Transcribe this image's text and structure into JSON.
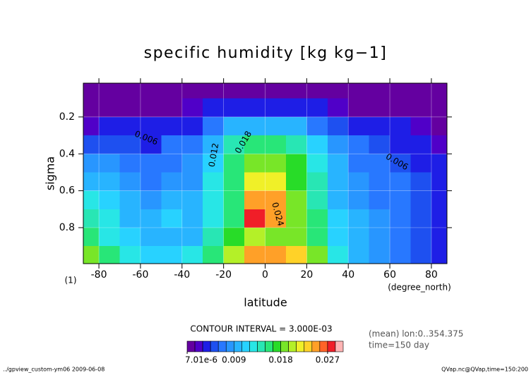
{
  "chart_data": {
    "type": "contour",
    "title": "specific humidity [kg kg−1]",
    "xlabel": "latitude",
    "ylabel": "sigma",
    "x_unit": "(degree_north)",
    "y_unit": "(1)",
    "x": [
      -85,
      -75,
      -65,
      -55,
      -45,
      -35,
      -25,
      -15,
      -5,
      5,
      15,
      25,
      35,
      45,
      55,
      65,
      75,
      85
    ],
    "y": [
      0.05,
      0.15,
      0.25,
      0.35,
      0.45,
      0.55,
      0.65,
      0.75,
      0.85,
      0.95
    ],
    "z": [
      [
        0.001,
        0.001,
        0.001,
        0.001,
        0.001,
        0.001,
        0.001,
        0.001,
        0.001,
        0.001,
        0.001,
        0.001,
        0.001,
        0.001,
        0.001,
        0.001,
        0.001,
        0.001
      ],
      [
        0.001,
        0.001,
        0.001,
        0.001,
        0.001,
        0.002,
        0.003,
        0.003,
        0.003,
        0.003,
        0.003,
        0.003,
        0.002,
        0.001,
        0.001,
        0.001,
        0.001,
        0.001
      ],
      [
        0.002,
        0.003,
        0.003,
        0.003,
        0.003,
        0.004,
        0.007,
        0.009,
        0.01,
        0.01,
        0.009,
        0.007,
        0.005,
        0.004,
        0.003,
        0.003,
        0.002,
        0.001
      ],
      [
        0.005,
        0.005,
        0.005,
        0.004,
        0.006,
        0.007,
        0.01,
        0.014,
        0.016,
        0.016,
        0.014,
        0.011,
        0.008,
        0.006,
        0.005,
        0.004,
        0.003,
        0.002
      ],
      [
        0.008,
        0.008,
        0.007,
        0.006,
        0.007,
        0.008,
        0.011,
        0.016,
        0.019,
        0.019,
        0.017,
        0.013,
        0.009,
        0.007,
        0.006,
        0.005,
        0.004,
        0.003
      ],
      [
        0.01,
        0.01,
        0.008,
        0.007,
        0.008,
        0.008,
        0.012,
        0.016,
        0.022,
        0.022,
        0.017,
        0.014,
        0.01,
        0.008,
        0.007,
        0.006,
        0.005,
        0.003
      ],
      [
        0.012,
        0.011,
        0.009,
        0.008,
        0.01,
        0.009,
        0.013,
        0.016,
        0.025,
        0.024,
        0.018,
        0.014,
        0.01,
        0.008,
        0.007,
        0.006,
        0.005,
        0.004
      ],
      [
        0.014,
        0.012,
        0.01,
        0.009,
        0.011,
        0.01,
        0.013,
        0.016,
        0.027,
        0.024,
        0.018,
        0.015,
        0.011,
        0.009,
        0.008,
        0.006,
        0.005,
        0.004
      ],
      [
        0.016,
        0.013,
        0.011,
        0.01,
        0.01,
        0.01,
        0.014,
        0.017,
        0.02,
        0.019,
        0.019,
        0.015,
        0.011,
        0.009,
        0.008,
        0.007,
        0.005,
        0.004
      ],
      [
        0.019,
        0.015,
        0.012,
        0.011,
        0.011,
        0.012,
        0.016,
        0.02,
        0.024,
        0.025,
        0.023,
        0.018,
        0.012,
        0.01,
        0.008,
        0.007,
        0.005,
        0.004
      ]
    ],
    "xlim": [
      -87.5,
      87.5
    ],
    "ylim": [
      0.995,
      0.017
    ],
    "xticks": [
      -80,
      -60,
      -40,
      -20,
      0,
      20,
      40,
      60,
      80
    ],
    "yticks": [
      0.2,
      0.4,
      0.6,
      0.8
    ],
    "grid": true,
    "contour_labels": [
      "0.006",
      "0.012",
      "0.018",
      "0.024",
      "0.006"
    ],
    "colorbar": {
      "title": "CONTOUR INTERVAL = 3.000E-03",
      "levels": [
        0,
        0.0015,
        0.003,
        0.0045,
        0.006,
        0.0075,
        0.009,
        0.0105,
        0.012,
        0.0135,
        0.015,
        0.0165,
        0.018,
        0.0195,
        0.021,
        0.0225,
        0.024,
        0.0255,
        0.027,
        0.0285,
        0.03
      ],
      "colors": [
        "#6400a0",
        "#5000c8",
        "#1e1ee6",
        "#1e50f0",
        "#2878ff",
        "#2896ff",
        "#28b4ff",
        "#28d2ff",
        "#28e6e6",
        "#28e6b4",
        "#28e678",
        "#28dc28",
        "#78e628",
        "#b4f028",
        "#f0f028",
        "#ffd228",
        "#ffa028",
        "#ff6428",
        "#f01e28",
        "#ffb4b4"
      ],
      "ticks": [
        {
          "value": 7.01e-06,
          "label": "7.01e-6"
        },
        0.009,
        0.018,
        0.027
      ]
    },
    "notes": [
      "(mean) lon:0..354.375",
      "time=150 day"
    ],
    "footer_left": "../gpview_custom-ym06  2009-06-08",
    "footer_right": "QVap.nc@QVap,time=150:200"
  }
}
